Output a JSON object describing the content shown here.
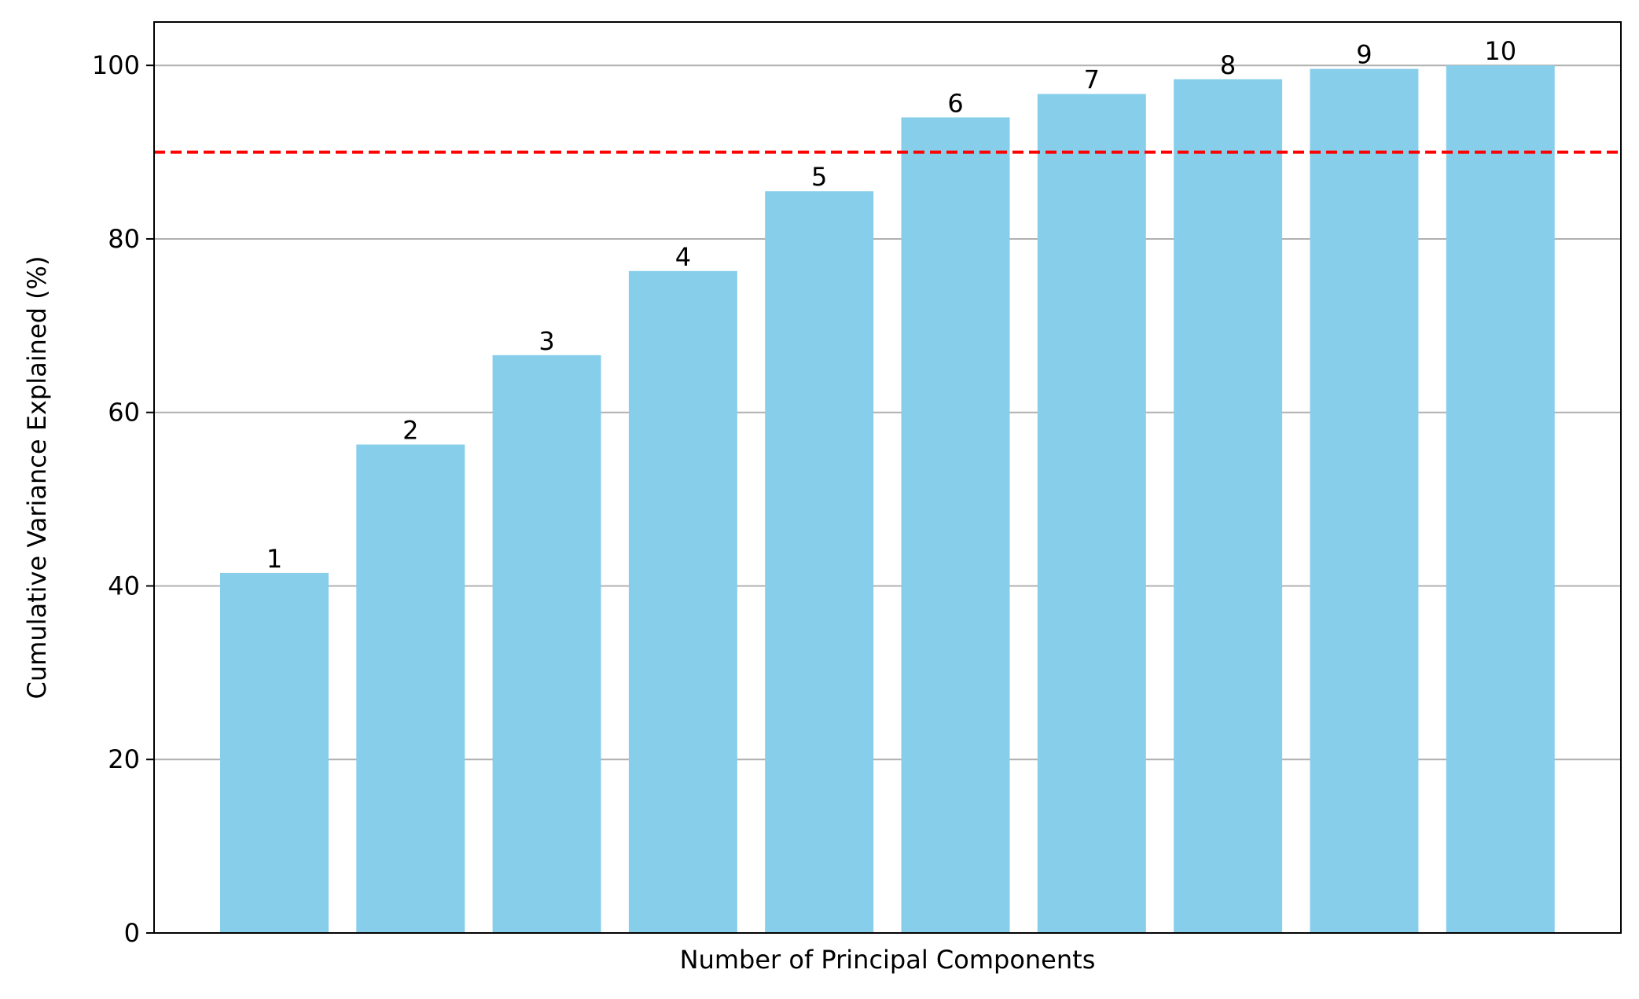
{
  "chart_data": {
    "type": "bar",
    "categories": [
      "1",
      "2",
      "3",
      "4",
      "5",
      "6",
      "7",
      "8",
      "9",
      "10"
    ],
    "values": [
      41.5,
      56.3,
      66.6,
      76.3,
      85.5,
      94.0,
      96.7,
      98.4,
      99.6,
      100.0
    ],
    "bar_labels": [
      "1",
      "2",
      "3",
      "4",
      "5",
      "6",
      "7",
      "8",
      "9",
      "10"
    ],
    "xlabel": "Number of Principal Components",
    "ylabel": "Cumulative Variance Explained (%)",
    "ylim": [
      0,
      105
    ],
    "yticks": [
      0,
      20,
      40,
      60,
      80,
      100
    ],
    "ytick_labels": [
      "0",
      "20",
      "40",
      "60",
      "80",
      "100"
    ],
    "threshold": {
      "value": 90,
      "style": "dashed",
      "color": "#ff0000"
    },
    "grid": {
      "axis": "y",
      "on": true,
      "color": "#b0b0b0"
    },
    "bar_color": "#87ceeb"
  }
}
